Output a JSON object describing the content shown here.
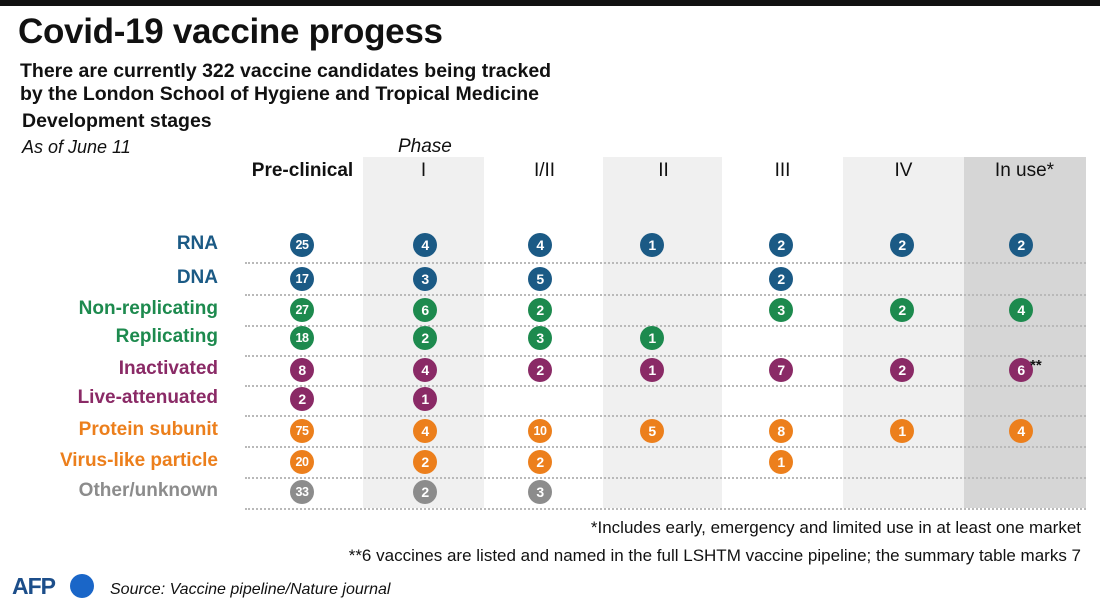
{
  "header": {
    "title": "Covid-19 vaccine progess",
    "subtitle_line1": "There are currently 322 vaccine candidates being tracked",
    "subtitle_line2": "by the London School of Hygiene and Tropical Medicine",
    "section_title": "Development stages",
    "as_of": "As of June 11",
    "phase_label": "Phase"
  },
  "chart_data": {
    "type": "table",
    "columns": [
      "Pre-clinical",
      "I",
      "I/II",
      "II",
      "III",
      "IV",
      "In use*"
    ],
    "rows": [
      {
        "name": "RNA",
        "color": "#1b5a85",
        "values": [
          25,
          4,
          4,
          1,
          2,
          2,
          2
        ]
      },
      {
        "name": "DNA",
        "color": "#1b5a85",
        "values": [
          17,
          3,
          5,
          null,
          2,
          null,
          null
        ]
      },
      {
        "name": "Non-replicating",
        "color": "#1d8a4e",
        "values": [
          27,
          6,
          2,
          null,
          3,
          2,
          4
        ]
      },
      {
        "name": "Replicating",
        "color": "#1d8a4e",
        "values": [
          18,
          2,
          3,
          1,
          null,
          null,
          null
        ]
      },
      {
        "name": "Inactivated",
        "color": "#8a2a66",
        "values": [
          8,
          4,
          2,
          1,
          7,
          2,
          6
        ],
        "notes": [
          null,
          null,
          null,
          null,
          null,
          null,
          "**"
        ]
      },
      {
        "name": "Live-attenuated",
        "color": "#8a2a66",
        "values": [
          2,
          1,
          null,
          null,
          null,
          null,
          null
        ]
      },
      {
        "name": "Protein subunit",
        "color": "#ec7f1c",
        "values": [
          75,
          4,
          10,
          5,
          8,
          1,
          4
        ]
      },
      {
        "name": "Virus-like particle",
        "color": "#ec7f1c",
        "values": [
          20,
          2,
          2,
          null,
          1,
          null,
          null
        ]
      },
      {
        "name": "Other/unknown",
        "color": "#8c8c8c",
        "values": [
          33,
          2,
          3,
          null,
          null,
          null,
          null
        ]
      }
    ]
  },
  "footnotes": {
    "note1": "*Includes early, emergency and limited use in at least one market",
    "note2": "**6 vaccines are listed and named in the full LSHTM vaccine pipeline; the summary table marks 7"
  },
  "footer": {
    "logo_text": "AFP",
    "source": "Source: Vaccine pipeline/Nature journal"
  }
}
